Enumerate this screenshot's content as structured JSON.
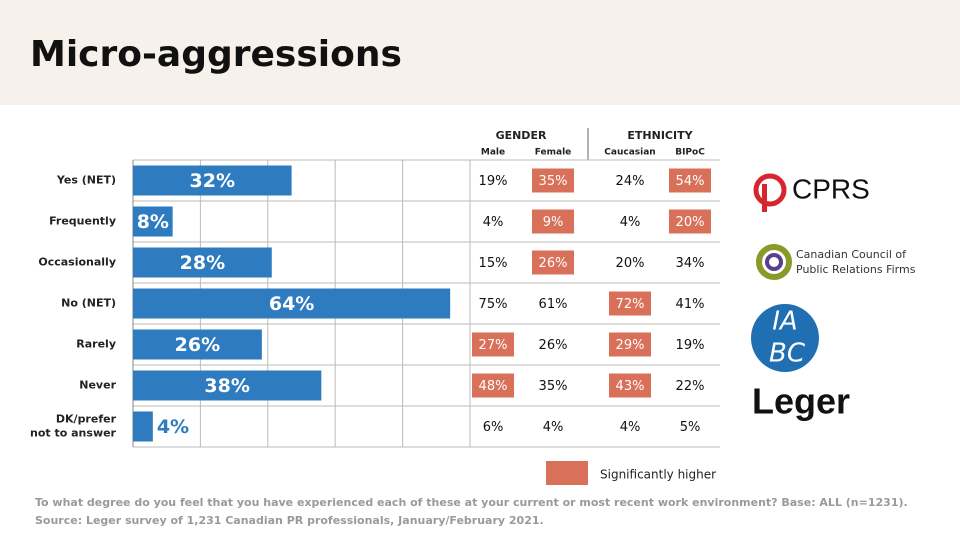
{
  "chart_data": {
    "type": "bar",
    "orientation": "horizontal",
    "title": "Micro-aggressions",
    "categories": [
      "Yes (NET)",
      "Frequently",
      "Occasionally",
      "No (NET)",
      "Rarely",
      "Never",
      "DK/prefer not to answer"
    ],
    "values": [
      32,
      8,
      28,
      64,
      26,
      38,
      4
    ],
    "value_labels": [
      "32%",
      "8%",
      "28%",
      "64%",
      "26%",
      "38%",
      "4%"
    ],
    "color": "#2e7bbf",
    "xlim": [
      0,
      68
    ],
    "grid": true
  },
  "table": {
    "groups": [
      "GENDER",
      "ETHNICITY"
    ],
    "columns": [
      "Male",
      "Female",
      "Caucasian",
      "BIPoC"
    ],
    "rows": [
      [
        "19%",
        "35%",
        "24%",
        "54%"
      ],
      [
        "4%",
        "9%",
        "4%",
        "20%"
      ],
      [
        "15%",
        "26%",
        "20%",
        "34%"
      ],
      [
        "75%",
        "61%",
        "72%",
        "41%"
      ],
      [
        "27%",
        "26%",
        "29%",
        "19%"
      ],
      [
        "48%",
        "35%",
        "43%",
        "22%"
      ],
      [
        "6%",
        "4%",
        "4%",
        "5%"
      ]
    ],
    "highlight": [
      [
        false,
        true,
        false,
        true
      ],
      [
        false,
        true,
        false,
        true
      ],
      [
        false,
        true,
        false,
        false
      ],
      [
        false,
        false,
        true,
        false
      ],
      [
        true,
        false,
        true,
        false
      ],
      [
        true,
        false,
        true,
        false
      ],
      [
        false,
        false,
        false,
        false
      ]
    ],
    "highlight_color": "#d9705a"
  },
  "legend": {
    "label": "Significantly higher"
  },
  "footnotes": [
    "To what degree do you feel that you have experienced each of these at your current or most recent work environment? Base: ALL (n=1231).",
    "Source: Leger survey of 1,231 Canadian PR professionals, January/February 2021."
  ],
  "logos": {
    "cprs": "CPRS",
    "cccprf": [
      "Canadian Council of",
      "Public Relations Firms"
    ],
    "iabc": [
      "IA",
      "BC"
    ],
    "leger": "Leger"
  }
}
